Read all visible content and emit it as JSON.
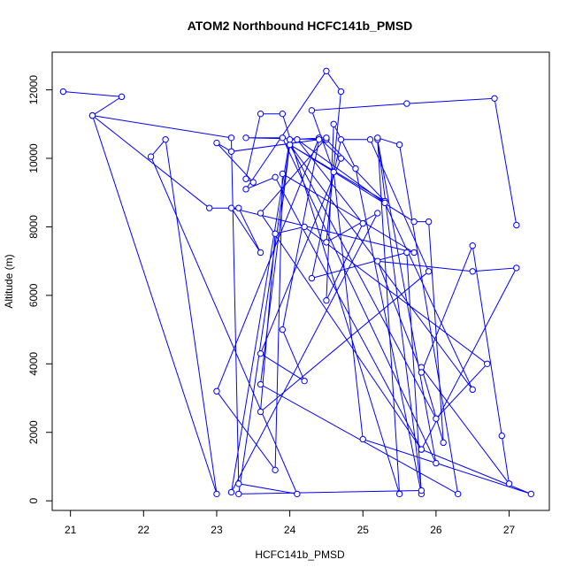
{
  "chart_data": {
    "type": "line",
    "title": "ATOM2 Northbound HCFC141b_PMSD",
    "xlabel": "HCFC141b_PMSD",
    "ylabel": "Altitude (m)",
    "xlim": [
      20.75,
      27.55
    ],
    "ylim": [
      -280,
      13100
    ],
    "x_ticks": [
      21,
      22,
      23,
      24,
      25,
      26,
      27
    ],
    "y_ticks": [
      0,
      2000,
      4000,
      6000,
      8000,
      10000,
      12000
    ],
    "grid": false,
    "marker": "open-circle",
    "line_color": "#0000ff",
    "series": [
      {
        "x": [
          20.9,
          21.7,
          21.3,
          23.0,
          22.3,
          22.1,
          24.1,
          23.3,
          23.2,
          21.3,
          22.9,
          23.3,
          23.6,
          23.2,
          25.7,
          23.9,
          23.8,
          23.0,
          24.4,
          24.7,
          23.6,
          24.2,
          23.9,
          24.4,
          23.2,
          23.0,
          23.5,
          23.4,
          23.6,
          23.9,
          25.5,
          25.2,
          26.0,
          23.9,
          23.4,
          24.5,
          25.3,
          24.0,
          26.5,
          25.3,
          24.1,
          25.0,
          24.5,
          24.6,
          24.9,
          25.8,
          25.6,
          24.3,
          24.7,
          25.1,
          25.9,
          23.6,
          23.8,
          24.2,
          26.7,
          26.0,
          24.0,
          23.3,
          25.8,
          25.2,
          25.5,
          26.3,
          23.6,
          24.0,
          25.7,
          25.9,
          26.1,
          25.8,
          27.0,
          26.9,
          26.5,
          25.8,
          25.2,
          26.5,
          27.1,
          25.8,
          23.6,
          24.5,
          24.0,
          23.2,
          25.2,
          24.5,
          24.7,
          24.5,
          23.4,
          23.8,
          25.8,
          27.3,
          25.0,
          24.6,
          24.3,
          25.6,
          26.8,
          27.1
        ],
        "y": [
          11950,
          11800,
          11250,
          200,
          10550,
          10050,
          200,
          500,
          10600,
          11250,
          8550,
          8550,
          7250,
          8550,
          7250,
          9550,
          900,
          3200,
          10600,
          10000,
          4300,
          3500,
          5000,
          10550,
          10200,
          10450,
          9300,
          9400,
          11300,
          11300,
          200,
          10550,
          1100,
          10600,
          10600,
          10550,
          8750,
          10400,
          3250,
          8700,
          10550,
          8100,
          5850,
          11000,
          9700,
          200,
          7250,
          6500,
          10550,
          10550,
          6700,
          2600,
          7800,
          8000,
          4000,
          2400,
          10400,
          200,
          300,
          10600,
          10400,
          200,
          3400,
          10400,
          8150,
          8150,
          1700,
          3900,
          500,
          1900,
          7450,
          3750,
          7000,
          6700,
          6800,
          1500,
          8400,
          10600,
          10550,
          250,
          8400,
          7550,
          11950,
          12550,
          9100,
          9450,
          1500,
          200,
          1800,
          9600,
          11400,
          11600,
          11750,
          8050
        ]
      }
    ]
  }
}
